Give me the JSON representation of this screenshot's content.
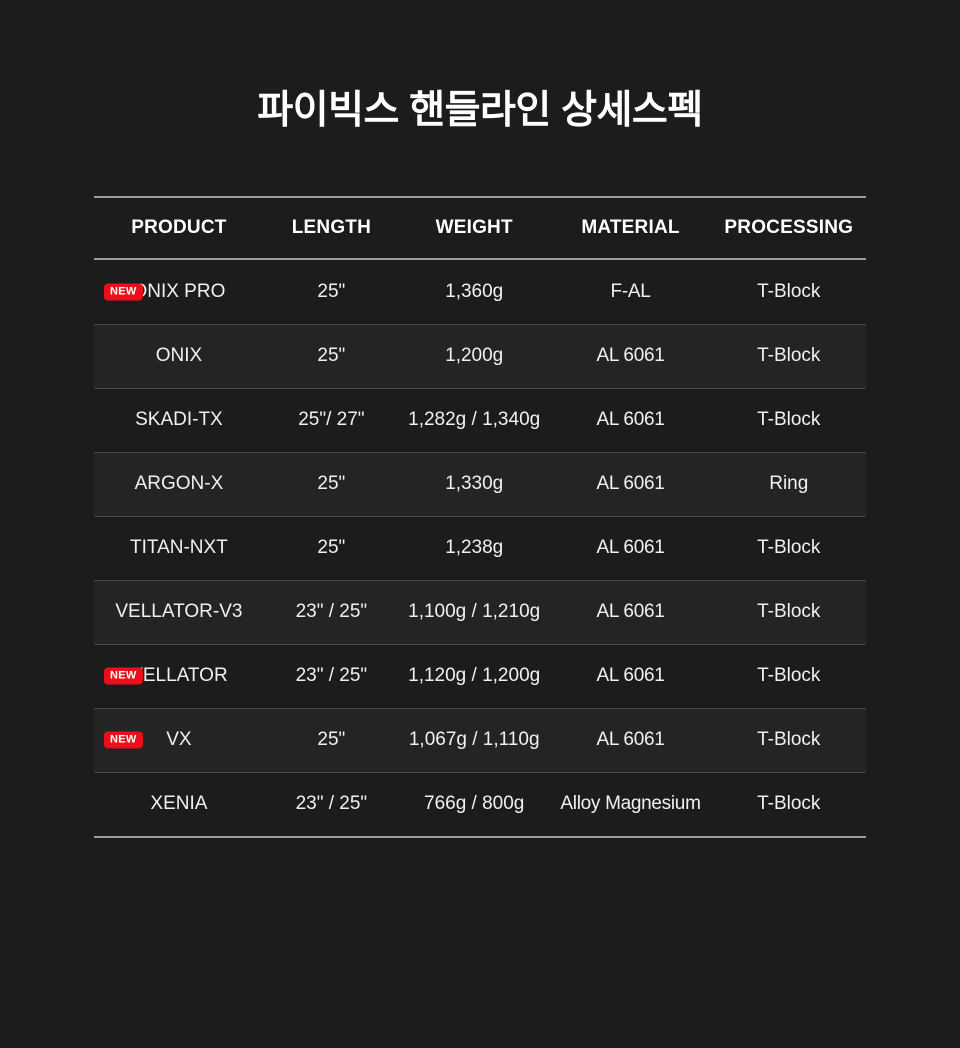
{
  "title": "파이빅스 핸들라인 상세스펙",
  "colors": {
    "background": "#1c1c1c",
    "row_alt": "#242424",
    "strong_line": "#9e9e9e",
    "row_line": "#4a4a4a",
    "badge_red": "#e8111b",
    "text": "#f1f1f1",
    "heading": "#ffffff"
  },
  "table": {
    "badge_label": "NEW",
    "columns": [
      {
        "key": "product",
        "label": "PRODUCT"
      },
      {
        "key": "length",
        "label": "LENGTH"
      },
      {
        "key": "weight",
        "label": "WEIGHT"
      },
      {
        "key": "material",
        "label": "MATERIAL"
      },
      {
        "key": "processing",
        "label": "PROCESSING"
      }
    ],
    "rows": [
      {
        "is_new": true,
        "product": "ONIX PRO",
        "length": "25\"",
        "weight": "1,360g",
        "material": "F-AL",
        "processing": "T-Block"
      },
      {
        "is_new": false,
        "product": "ONIX",
        "length": "25\"",
        "weight": "1,200g",
        "material": "AL 6061",
        "processing": "T-Block"
      },
      {
        "is_new": false,
        "product": "SKADI-TX",
        "length": "25\"/ 27\"",
        "weight": "1,282g / 1,340g",
        "material": "AL 6061",
        "processing": "T-Block"
      },
      {
        "is_new": false,
        "product": "ARGON-X",
        "length": "25\"",
        "weight": "1,330g",
        "material": "AL 6061",
        "processing": "Ring"
      },
      {
        "is_new": false,
        "product": "TITAN-NXT",
        "length": "25\"",
        "weight": "1,238g",
        "material": "AL 6061",
        "processing": "T-Block"
      },
      {
        "is_new": false,
        "product": "VELLATOR-V3",
        "length": "23\" / 25\"",
        "weight": "1,100g / 1,210g",
        "material": "AL 6061",
        "processing": "T-Block"
      },
      {
        "is_new": true,
        "product": "VELLATOR",
        "length": "23\" / 25\"",
        "weight": "1,120g / 1,200g",
        "material": "AL 6061",
        "processing": "T-Block"
      },
      {
        "is_new": true,
        "product": "VX",
        "length": "25\"",
        "weight": "1,067g / 1,110g",
        "material": "AL 6061",
        "processing": "T-Block"
      },
      {
        "is_new": false,
        "product": "XENIA",
        "length": "23\" / 25\"",
        "weight": "766g / 800g",
        "material": "Alloy Magnesium",
        "processing": "T-Block"
      }
    ]
  }
}
